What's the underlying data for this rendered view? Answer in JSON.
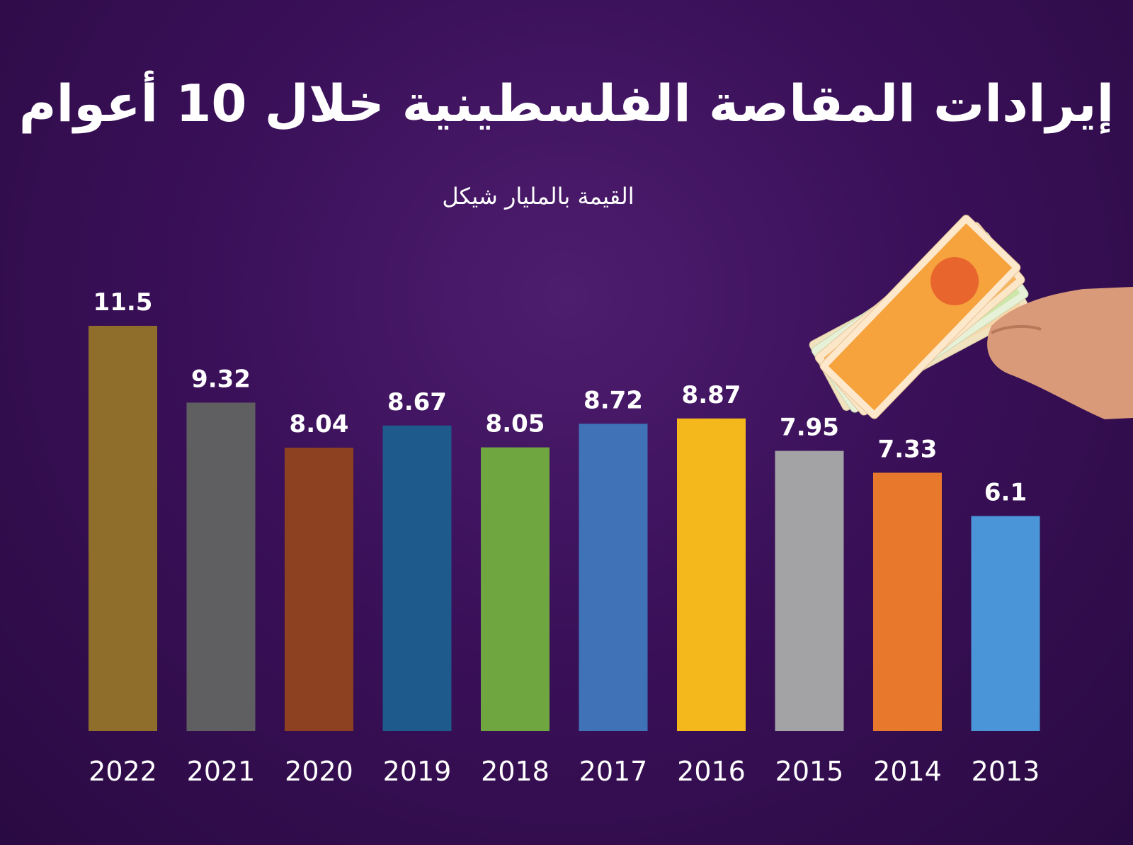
{
  "title": "إيرادات المقاصة الفلسطينية خلال 10 أعوام",
  "subtitle": "القيمة بالمليار شيكل",
  "chart_data": {
    "type": "bar",
    "categories": [
      "2022",
      "2021",
      "2020",
      "2019",
      "2018",
      "2017",
      "2016",
      "2015",
      "2014",
      "2013"
    ],
    "values": [
      11.5,
      9.32,
      8.04,
      8.67,
      8.05,
      8.72,
      8.87,
      7.95,
      7.33,
      6.1
    ],
    "value_labels": [
      "11.5",
      "9.32",
      "8.04",
      "8.67",
      "8.05",
      "8.72",
      "8.87",
      "7.95",
      "7.33",
      "6.1"
    ],
    "colors": [
      "#8f6e2b",
      "#5f5f61",
      "#8e4120",
      "#1e5a8c",
      "#6fa640",
      "#3f72b6",
      "#f5b81c",
      "#a3a3a5",
      "#e8782c",
      "#4a95d8"
    ],
    "ylim": [
      0,
      11.5
    ],
    "grid": false,
    "legend": "none"
  }
}
